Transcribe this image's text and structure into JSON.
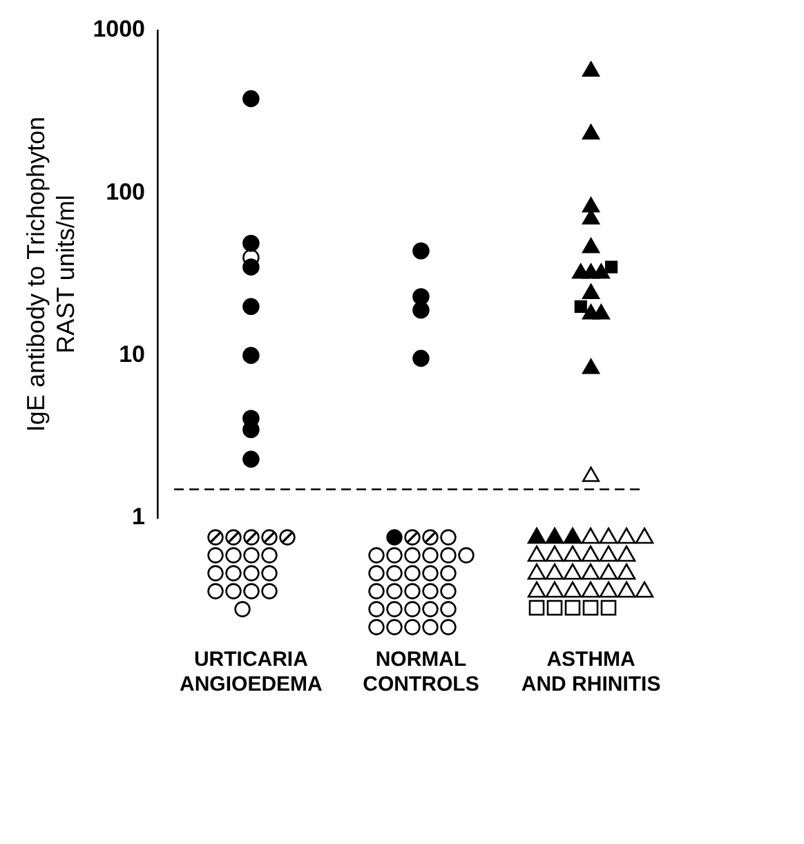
{
  "chart_data": {
    "type": "scatter",
    "ylabel": "IgE antibody to Trichophyton\nRAST units/ml",
    "categories": [
      "URTICARIA\nANGIOEDEMA",
      "NORMAL\nCONTROLS",
      "ASTHMA\nAND RHINITIS"
    ],
    "series": [
      {
        "color": "#000000",
        "marker": "circle",
        "x": [
          "URTICARIA\nANGIOEDEMA",
          "URTICARIA\nANGIOEDEMA",
          "URTICARIA\nANGIOEDEMA",
          "URTICARIA\nANGIOEDEMA",
          "URTICARIA\nANGIOEDEMA",
          "URTICARIA\nANGIOEDEMA",
          "URTICARIA\nANGIOEDEMA",
          "URTICARIA\nANGIOEDEMA",
          "NORMAL\nCONTROLS",
          "NORMAL\nCONTROLS",
          "NORMAL\nCONTROLS",
          "NORMAL\nCONTROLS"
        ],
        "values": [
          380,
          49,
          35,
          20,
          10,
          4.1,
          3.5,
          2.3,
          44,
          23,
          19,
          9.6
        ]
      },
      {
        "color": "#ffffff",
        "marker": "circle",
        "x": [
          "URTICARIA\nANGIOEDEMA"
        ],
        "values": [
          40
        ]
      },
      {
        "color": "#000000",
        "marker": "triangle",
        "x": [
          "ASTHMA\nAND RHINITIS",
          "ASTHMA\nAND RHINITIS",
          "ASTHMA\nAND RHINITIS",
          "ASTHMA\nAND RHINITIS",
          "ASTHMA\nAND RHINITIS",
          "ASTHMA\nAND RHINITIS",
          "ASTHMA\nAND RHINITIS",
          "ASTHMA\nAND RHINITIS",
          "ASTHMA\nAND RHINITIS",
          "ASTHMA\nAND RHINITIS",
          "ASTHMA\nAND RHINITIS",
          "ASTHMA\nAND RHINITIS"
        ],
        "values": [
          560,
          230,
          82,
          69,
          46,
          32,
          32,
          32,
          24,
          18,
          18,
          8.3
        ]
      },
      {
        "color": "#000000",
        "marker": "square",
        "x": [
          "ASTHMA\nAND RHINITIS",
          "ASTHMA\nAND RHINITIS"
        ],
        "values": [
          35,
          20
        ]
      },
      {
        "color": "#ffffff",
        "marker": "triangle",
        "x": [
          "ASTHMA\nAND RHINITIS"
        ],
        "values": [
          1.8
        ]
      }
    ],
    "ylim": [
      1,
      1000
    ],
    "yticks": [
      1,
      10,
      100,
      1000
    ],
    "log": true,
    "grid": false,
    "legend": false,
    "ref_lines": [
      {
        "axis": "y",
        "value": 1.5,
        "line_style": "dashed"
      }
    ]
  }
}
